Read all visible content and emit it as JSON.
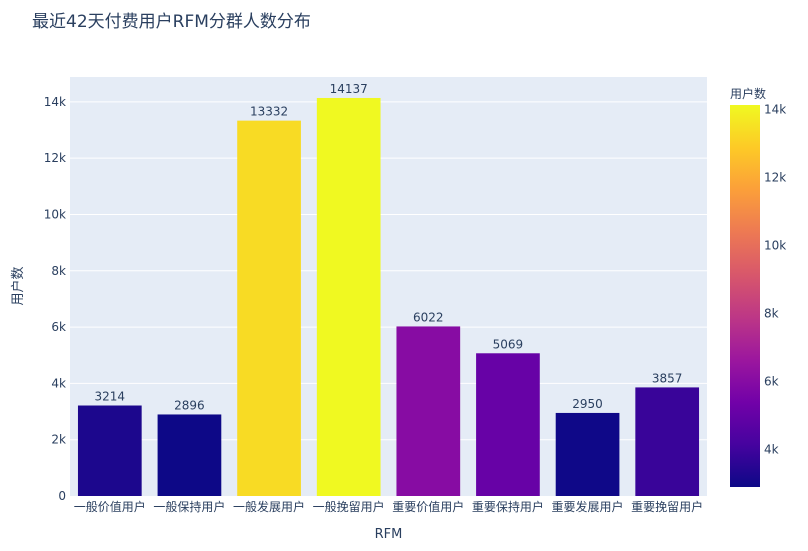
{
  "chart_data": {
    "type": "bar",
    "title": "最近42天付费用户RFM分群人数分布",
    "xlabel": "RFM",
    "ylabel": "用户数",
    "categories": [
      "一般价值用户",
      "一般保持用户",
      "一般发展用户",
      "一般挽留用户",
      "重要价值用户",
      "重要保持用户",
      "重要发展用户",
      "重要挽留用户"
    ],
    "values": [
      3214,
      2896,
      13332,
      14137,
      6022,
      5069,
      2950,
      3857
    ],
    "ylim": [
      0,
      14882
    ],
    "yticks": [
      0,
      2000,
      4000,
      6000,
      8000,
      10000,
      12000,
      14000
    ],
    "ytick_labels": [
      "0",
      "2k",
      "4k",
      "6k",
      "8k",
      "10k",
      "12k",
      "14k"
    ],
    "grid": true,
    "colorbar": {
      "title": "用户数",
      "range": [
        2896,
        14137
      ],
      "ticks": [
        4000,
        6000,
        8000,
        10000,
        12000,
        14000
      ],
      "tick_labels": [
        "4k",
        "6k",
        "8k",
        "10k",
        "12k",
        "14k"
      ],
      "colorscale": [
        "#0d0887",
        "#46039f",
        "#7201a8",
        "#9c179e",
        "#bd3786",
        "#d8576b",
        "#ed7953",
        "#fb9f3a",
        "#fdca26",
        "#f0f921"
      ]
    },
    "plot_background": "#e5ecf6"
  }
}
